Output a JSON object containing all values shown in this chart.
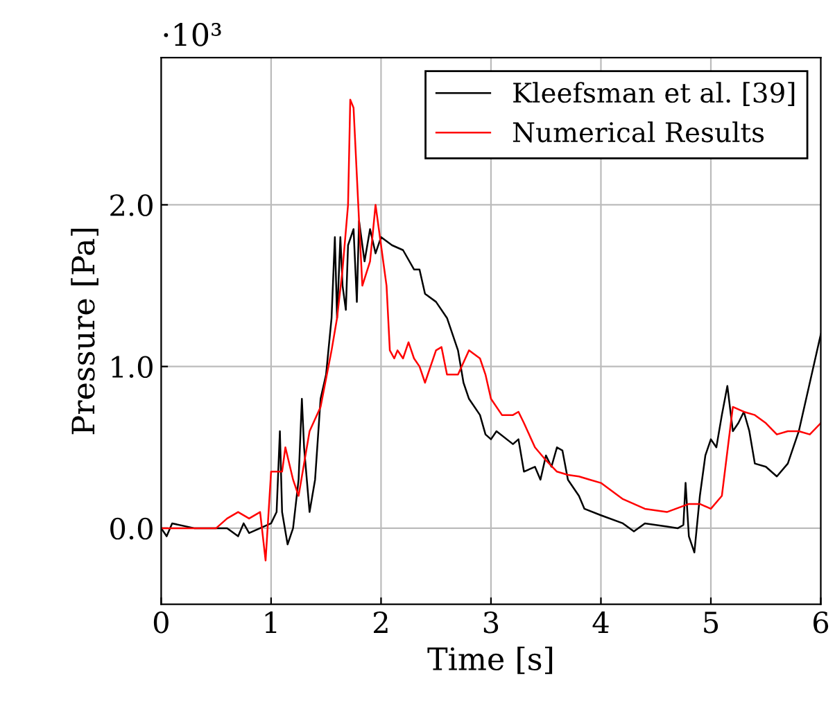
{
  "chart_data": {
    "type": "line",
    "xlabel": "Time [s]",
    "ylabel": "Pressure [Pa]",
    "annotations": [
      "·10³"
    ],
    "xlim": [
      0,
      6
    ],
    "ylim": [
      -0.47,
      2.91
    ],
    "xticks": [
      0,
      1,
      2,
      3,
      4,
      5,
      6
    ],
    "yticks": [
      {
        "value": 0,
        "label": "0.0"
      },
      {
        "value": 1,
        "label": "1.0"
      },
      {
        "value": 2,
        "label": "2.0"
      }
    ],
    "grid": true,
    "legend": "top right",
    "series": [
      {
        "name": "Kleefsman et al. [39]",
        "color": "#000000",
        "x": [
          0,
          0.05,
          0.1,
          0.3,
          0.5,
          0.6,
          0.7,
          0.75,
          0.8,
          0.9,
          1.0,
          1.05,
          1.08,
          1.1,
          1.15,
          1.2,
          1.25,
          1.28,
          1.3,
          1.35,
          1.4,
          1.45,
          1.5,
          1.55,
          1.58,
          1.6,
          1.63,
          1.65,
          1.68,
          1.7,
          1.75,
          1.78,
          1.8,
          1.85,
          1.9,
          1.95,
          2.0,
          2.1,
          2.2,
          2.3,
          2.35,
          2.4,
          2.5,
          2.6,
          2.7,
          2.75,
          2.8,
          2.9,
          2.95,
          3.0,
          3.05,
          3.2,
          3.25,
          3.3,
          3.4,
          3.45,
          3.5,
          3.55,
          3.6,
          3.65,
          3.7,
          3.8,
          3.85,
          4.0,
          4.2,
          4.3,
          4.4,
          4.6,
          4.7,
          4.75,
          4.77,
          4.8,
          4.85,
          4.9,
          4.95,
          5.0,
          5.05,
          5.1,
          5.15,
          5.2,
          5.25,
          5.3,
          5.35,
          5.4,
          5.5,
          5.6,
          5.7,
          5.8,
          5.9,
          6.0
        ],
        "values": [
          0.0,
          -0.05,
          0.03,
          0.0,
          0.0,
          0.0,
          -0.05,
          0.03,
          -0.03,
          0.0,
          0.03,
          0.1,
          0.6,
          0.1,
          -0.1,
          0.0,
          0.3,
          0.8,
          0.5,
          0.1,
          0.3,
          0.8,
          0.95,
          1.3,
          1.8,
          1.3,
          1.8,
          1.5,
          1.35,
          1.75,
          1.85,
          1.4,
          1.9,
          1.65,
          1.85,
          1.7,
          1.8,
          1.75,
          1.72,
          1.6,
          1.6,
          1.45,
          1.4,
          1.3,
          1.1,
          0.9,
          0.8,
          0.7,
          0.58,
          0.55,
          0.6,
          0.52,
          0.55,
          0.35,
          0.38,
          0.3,
          0.45,
          0.38,
          0.5,
          0.48,
          0.3,
          0.2,
          0.12,
          0.08,
          0.03,
          -0.02,
          0.03,
          0.01,
          0.0,
          0.02,
          0.28,
          -0.05,
          -0.15,
          0.2,
          0.45,
          0.55,
          0.5,
          0.7,
          0.88,
          0.6,
          0.65,
          0.72,
          0.6,
          0.4,
          0.38,
          0.32,
          0.4,
          0.6,
          0.9,
          1.2
        ]
      },
      {
        "name": "Numerical Results",
        "color": "#ff0000",
        "x": [
          0,
          0.5,
          0.6,
          0.7,
          0.8,
          0.9,
          0.95,
          1.0,
          1.05,
          1.1,
          1.13,
          1.2,
          1.25,
          1.3,
          1.35,
          1.45,
          1.55,
          1.6,
          1.65,
          1.7,
          1.72,
          1.75,
          1.8,
          1.83,
          1.9,
          1.95,
          2.0,
          2.05,
          2.08,
          2.12,
          2.15,
          2.2,
          2.25,
          2.3,
          2.35,
          2.4,
          2.45,
          2.5,
          2.55,
          2.6,
          2.7,
          2.8,
          2.9,
          2.95,
          3.0,
          3.1,
          3.2,
          3.25,
          3.3,
          3.4,
          3.5,
          3.6,
          3.7,
          3.8,
          3.9,
          4.0,
          4.2,
          4.4,
          4.6,
          4.8,
          4.9,
          5.0,
          5.1,
          5.2,
          5.3,
          5.4,
          5.5,
          5.6,
          5.7,
          5.8,
          5.9,
          6.0
        ],
        "values": [
          0.0,
          0.0,
          0.06,
          0.1,
          0.06,
          0.1,
          -0.2,
          0.35,
          0.35,
          0.35,
          0.5,
          0.3,
          0.2,
          0.4,
          0.6,
          0.75,
          1.1,
          1.3,
          1.6,
          2.0,
          2.65,
          2.6,
          1.9,
          1.5,
          1.65,
          2.0,
          1.75,
          1.5,
          1.1,
          1.05,
          1.1,
          1.05,
          1.15,
          1.05,
          1.0,
          0.9,
          1.0,
          1.1,
          1.12,
          0.95,
          0.95,
          1.1,
          1.05,
          0.95,
          0.8,
          0.7,
          0.7,
          0.72,
          0.65,
          0.5,
          0.42,
          0.35,
          0.33,
          0.32,
          0.3,
          0.28,
          0.18,
          0.12,
          0.1,
          0.15,
          0.15,
          0.12,
          0.2,
          0.75,
          0.72,
          0.7,
          0.65,
          0.58,
          0.6,
          0.6,
          0.58,
          0.65
        ]
      }
    ]
  }
}
